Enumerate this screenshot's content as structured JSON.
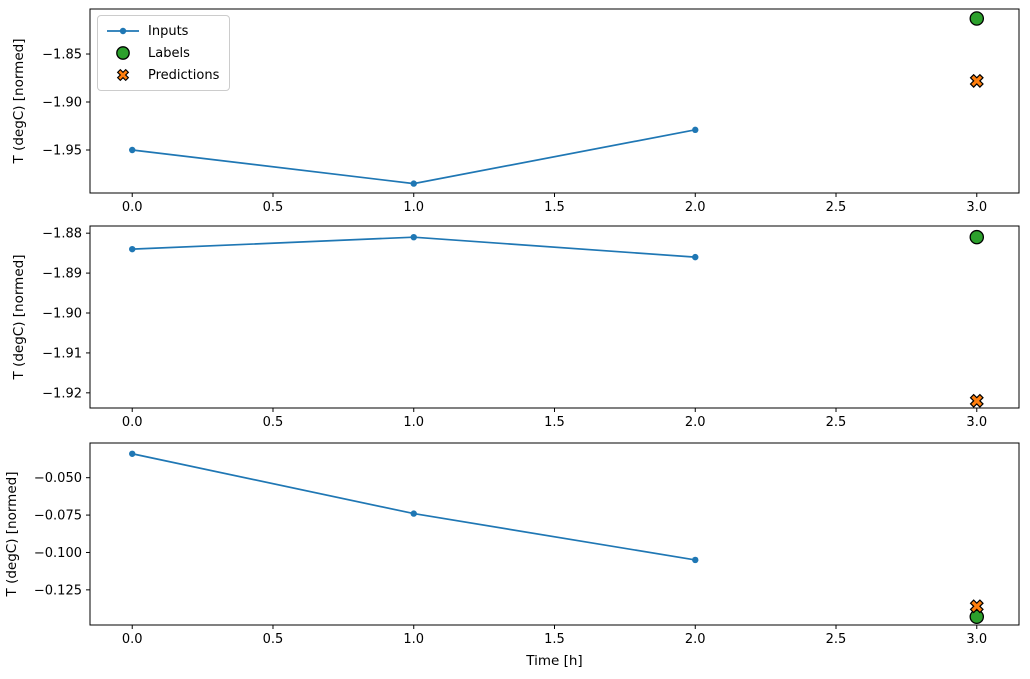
{
  "xlabel": "Time [h]",
  "ylabel": "T (degC) [normed]",
  "legend": {
    "items": [
      {
        "label": "Inputs"
      },
      {
        "label": "Labels"
      },
      {
        "label": "Predictions"
      }
    ]
  },
  "colors": {
    "inputs": "#1f77b4",
    "labels": "#2ca02c",
    "predictions": "#ff7f0e",
    "marker_edge": "#000000",
    "spine": "#000000",
    "tick_text": "#000000",
    "legend_border": "#cccccc",
    "background": "#ffffff"
  },
  "chart_data": [
    {
      "type": "line",
      "title": "",
      "xlabel": "",
      "ylabel": "T (degC) [normed]",
      "xlim": [
        -0.15,
        3.15
      ],
      "ylim": [
        -1.9948,
        -1.8031
      ],
      "legend_position": "upper left",
      "grid": false,
      "xticks": [
        {
          "v": 0.0,
          "label": "0.0"
        },
        {
          "v": 0.5,
          "label": "0.5"
        },
        {
          "v": 1.0,
          "label": "1.0"
        },
        {
          "v": 1.5,
          "label": "1.5"
        },
        {
          "v": 2.0,
          "label": "2.0"
        },
        {
          "v": 2.5,
          "label": "2.5"
        },
        {
          "v": 3.0,
          "label": "3.0"
        }
      ],
      "yticks": [
        {
          "v": -1.85,
          "label": "−1.85"
        },
        {
          "v": -1.9,
          "label": "−1.90"
        },
        {
          "v": -1.95,
          "label": "−1.95"
        }
      ],
      "series": [
        {
          "name": "Inputs",
          "style": "line-dot",
          "x": [
            0,
            1,
            2
          ],
          "y": [
            -1.95,
            -1.985,
            -1.929
          ]
        },
        {
          "name": "Labels",
          "style": "circle",
          "x": [
            3
          ],
          "y": [
            -1.813
          ]
        },
        {
          "name": "Predictions",
          "style": "x-marker",
          "x": [
            3
          ],
          "y": [
            -1.878
          ]
        }
      ]
    },
    {
      "type": "line",
      "title": "",
      "xlabel": "",
      "ylabel": "T (degC) [normed]",
      "xlim": [
        -0.15,
        3.15
      ],
      "ylim": [
        -1.9238,
        -1.8782
      ],
      "grid": false,
      "xticks": [
        {
          "v": 0.0,
          "label": "0.0"
        },
        {
          "v": 0.5,
          "label": "0.5"
        },
        {
          "v": 1.0,
          "label": "1.0"
        },
        {
          "v": 1.5,
          "label": "1.5"
        },
        {
          "v": 2.0,
          "label": "2.0"
        },
        {
          "v": 2.5,
          "label": "2.5"
        },
        {
          "v": 3.0,
          "label": "3.0"
        }
      ],
      "yticks": [
        {
          "v": -1.88,
          "label": "−1.88"
        },
        {
          "v": -1.89,
          "label": "−1.89"
        },
        {
          "v": -1.9,
          "label": "−1.90"
        },
        {
          "v": -1.91,
          "label": "−1.91"
        },
        {
          "v": -1.92,
          "label": "−1.92"
        }
      ],
      "series": [
        {
          "name": "Inputs",
          "style": "line-dot",
          "x": [
            0,
            1,
            2
          ],
          "y": [
            -1.884,
            -1.881,
            -1.886
          ]
        },
        {
          "name": "Labels",
          "style": "circle",
          "x": [
            3
          ],
          "y": [
            -1.881
          ]
        },
        {
          "name": "Predictions",
          "style": "x-marker",
          "x": [
            3
          ],
          "y": [
            -1.922
          ]
        }
      ]
    },
    {
      "type": "line",
      "title": "",
      "xlabel": "Time [h]",
      "ylabel": "T (degC) [normed]",
      "xlim": [
        -0.15,
        3.15
      ],
      "ylim": [
        -0.1485,
        -0.0268
      ],
      "grid": false,
      "xticks": [
        {
          "v": 0.0,
          "label": "0.0"
        },
        {
          "v": 0.5,
          "label": "0.5"
        },
        {
          "v": 1.0,
          "label": "1.0"
        },
        {
          "v": 1.5,
          "label": "1.5"
        },
        {
          "v": 2.0,
          "label": "2.0"
        },
        {
          "v": 2.5,
          "label": "2.5"
        },
        {
          "v": 3.0,
          "label": "3.0"
        }
      ],
      "yticks": [
        {
          "v": -0.05,
          "label": "−0.050"
        },
        {
          "v": -0.075,
          "label": "−0.075"
        },
        {
          "v": -0.1,
          "label": "−0.100"
        },
        {
          "v": -0.125,
          "label": "−0.125"
        }
      ],
      "series": [
        {
          "name": "Inputs",
          "style": "line-dot",
          "x": [
            0,
            1,
            2
          ],
          "y": [
            -0.034,
            -0.074,
            -0.105
          ]
        },
        {
          "name": "Labels",
          "style": "circle",
          "x": [
            3
          ],
          "y": [
            -0.143
          ]
        },
        {
          "name": "Predictions",
          "style": "x-marker",
          "x": [
            3
          ],
          "y": [
            -0.136
          ]
        }
      ]
    }
  ]
}
